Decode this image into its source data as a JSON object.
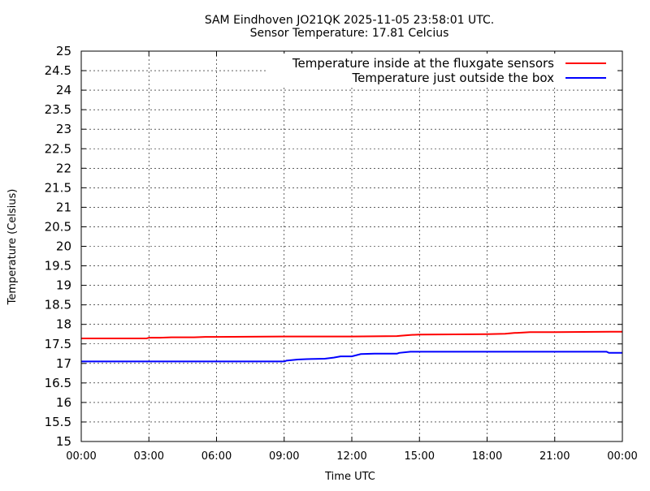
{
  "chart_data": {
    "type": "line",
    "title_line1": "SAM Eindhoven JO21QK 2025-11-05 23:58:01 UTC.",
    "title_line2": "Sensor Temperature: 17.81 Celcius",
    "xlabel": "Time UTC",
    "ylabel": "Temperature (Celsius)",
    "xlim": [
      0,
      24
    ],
    "ylim": [
      15,
      25
    ],
    "grid": true,
    "legend_position": "top-right",
    "x_ticks": [
      {
        "value": 0,
        "label": "00:00"
      },
      {
        "value": 3,
        "label": "03:00"
      },
      {
        "value": 6,
        "label": "06:00"
      },
      {
        "value": 9,
        "label": "09:00"
      },
      {
        "value": 12,
        "label": "12:00"
      },
      {
        "value": 15,
        "label": "15:00"
      },
      {
        "value": 18,
        "label": "18:00"
      },
      {
        "value": 21,
        "label": "21:00"
      },
      {
        "value": 24,
        "label": "00:00"
      }
    ],
    "y_ticks": [
      {
        "value": 15,
        "label": "15"
      },
      {
        "value": 15.5,
        "label": "15.5"
      },
      {
        "value": 16,
        "label": "16"
      },
      {
        "value": 16.5,
        "label": "16.5"
      },
      {
        "value": 17,
        "label": "17"
      },
      {
        "value": 17.5,
        "label": "17.5"
      },
      {
        "value": 18,
        "label": "18"
      },
      {
        "value": 18.5,
        "label": "18.5"
      },
      {
        "value": 19,
        "label": "19"
      },
      {
        "value": 19.5,
        "label": "19.5"
      },
      {
        "value": 20,
        "label": "20"
      },
      {
        "value": 20.5,
        "label": "20.5"
      },
      {
        "value": 21,
        "label": "21"
      },
      {
        "value": 21.5,
        "label": "21.5"
      },
      {
        "value": 22,
        "label": "22"
      },
      {
        "value": 22.5,
        "label": "22.5"
      },
      {
        "value": 23,
        "label": "23"
      },
      {
        "value": 23.5,
        "label": "23.5"
      },
      {
        "value": 24,
        "label": "24"
      },
      {
        "value": 24.5,
        "label": "24.5"
      },
      {
        "value": 25,
        "label": "25"
      }
    ],
    "series": [
      {
        "name": "Temperature inside at the fluxgate sensors",
        "color": "#ff0000",
        "x": [
          0,
          2.9,
          3.0,
          3.5,
          4.0,
          4.5,
          5.0,
          5.5,
          6.0,
          9.0,
          12.0,
          14.0,
          14.2,
          14.6,
          15.0,
          15.1,
          18.0,
          18.8,
          19.2,
          19.6,
          19.9,
          21.0,
          23.5,
          23.99
        ],
        "y": [
          17.64,
          17.64,
          17.66,
          17.66,
          17.67,
          17.67,
          17.67,
          17.68,
          17.68,
          17.69,
          17.69,
          17.7,
          17.71,
          17.73,
          17.74,
          17.74,
          17.75,
          17.76,
          17.78,
          17.79,
          17.8,
          17.8,
          17.81,
          17.81
        ]
      },
      {
        "name": "Temperature just outside the box",
        "color": "#0000ff",
        "x": [
          0,
          3.0,
          6.0,
          9.0,
          9.1,
          9.6,
          10.0,
          10.8,
          11.2,
          11.5,
          12.0,
          12.4,
          13.0,
          14.0,
          14.1,
          14.6,
          15.0,
          18.0,
          21.0,
          23.3,
          23.4,
          23.99
        ],
        "y": [
          17.05,
          17.05,
          17.05,
          17.05,
          17.07,
          17.1,
          17.11,
          17.12,
          17.15,
          17.18,
          17.18,
          17.24,
          17.25,
          17.25,
          17.27,
          17.3,
          17.3,
          17.3,
          17.3,
          17.3,
          17.27,
          17.27
        ]
      }
    ]
  }
}
